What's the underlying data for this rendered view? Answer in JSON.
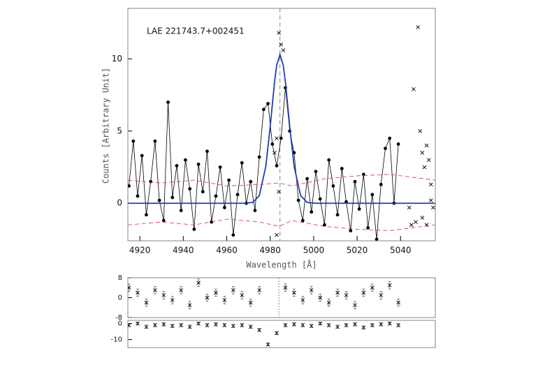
{
  "chart_data": [
    {
      "type": "scatter",
      "annotation": "LAE 221743.7+002451",
      "xlabel": "Wavelength [Å]",
      "ylabel": "Counts [Arbitrary Unit]",
      "xlim": [
        4914.5,
        5056
      ],
      "ylim": [
        -2.6,
        13.5
      ],
      "xticks": [
        4920,
        4940,
        4960,
        4980,
        5000,
        5020,
        5040
      ],
      "yticks": [
        0,
        5,
        10
      ],
      "vline": 4984.5,
      "series": [
        {
          "style": "points-line",
          "color": "#000000",
          "x": [
            4915,
            4917,
            4919,
            4921,
            4923,
            4925,
            4927,
            4929,
            4931,
            4933,
            4935,
            4937,
            4939,
            4941,
            4943,
            4945,
            4947,
            4949,
            4951,
            4953,
            4955,
            4957,
            4959,
            4961,
            4963,
            4965,
            4967,
            4969,
            4971,
            4973,
            4975,
            4977,
            4979,
            4981,
            4983,
            4985,
            4987,
            4989,
            4991,
            4993,
            4995,
            4997,
            4999,
            5001,
            5003,
            5005,
            5007,
            5009,
            5011,
            5013,
            5015,
            5017,
            5019,
            5021,
            5023,
            5025,
            5027,
            5029,
            5031,
            5033,
            5035,
            5037,
            5039
          ],
          "values": [
            1.2,
            4.3,
            0.5,
            3.3,
            -0.8,
            1.5,
            4.3,
            0.2,
            -1.2,
            7.0,
            0.4,
            2.6,
            -0.5,
            3.0,
            1.0,
            -1.8,
            2.7,
            0.8,
            3.6,
            -1.3,
            0.5,
            2.5,
            -0.3,
            1.6,
            -2.2,
            0.6,
            2.8,
            0.0,
            1.5,
            -0.5,
            3.2,
            6.5,
            6.9,
            4.1,
            2.6,
            4.5,
            8.0,
            5.0,
            3.5,
            0.2,
            -1.2,
            1.7,
            -0.6,
            2.2,
            0.3,
            -1.5,
            3.0,
            1.2,
            -0.8,
            2.4,
            0.1,
            -1.9,
            1.5,
            -0.4,
            2.0,
            -1.7,
            0.6,
            -2.5,
            1.3,
            3.8,
            4.5,
            0.0,
            4.1
          ]
        },
        {
          "style": "cross",
          "color": "#000000",
          "x": [
            4984,
            4985,
            4986,
            4983,
            4982,
            4984,
            4983,
            5048,
            5046,
            5049,
            5050,
            5052,
            5053,
            5051,
            5054,
            5054,
            5055,
            5050,
            5044,
            5047,
            5052,
            5045
          ],
          "values": [
            11.8,
            11.0,
            10.6,
            4.5,
            3.5,
            0.8,
            -2.2,
            12.2,
            7.9,
            5.0,
            3.5,
            4.0,
            3.0,
            2.5,
            1.3,
            0.2,
            -0.3,
            -1.0,
            -0.3,
            -1.3,
            -1.5,
            -1.5
          ]
        },
        {
          "style": "line",
          "color": "#1f3fb0",
          "x": [
            4914.5,
            4968,
            4972,
            4975,
            4978,
            4980,
            4982,
            4983,
            4984.5,
            4986,
            4987,
            4989,
            4991,
            4994,
            4997,
            5001,
            5056
          ],
          "values": [
            0,
            0,
            0.06,
            0.53,
            2.57,
            5.3,
            8.4,
            9.57,
            10.3,
            9.57,
            8.4,
            5.3,
            2.57,
            0.53,
            0.06,
            0,
            0
          ]
        },
        {
          "style": "dashed",
          "color": "#cc3344",
          "x": [
            4914.5,
            4930,
            4945,
            4960,
            4975,
            4984,
            4990,
            5005,
            5020,
            5035,
            5056
          ],
          "values": [
            1.6,
            1.4,
            1.6,
            1.2,
            1.3,
            1.4,
            1.2,
            1.7,
            1.9,
            2.0,
            1.6
          ]
        },
        {
          "style": "dashed",
          "color": "#cc3344",
          "x": [
            4914.5,
            4930,
            4945,
            4960,
            4975,
            4984,
            4990,
            5005,
            5020,
            5035,
            5056
          ],
          "values": [
            -1.5,
            -1.3,
            -1.5,
            -1.1,
            -1.3,
            -1.6,
            -1.2,
            -1.6,
            -1.8,
            -1.9,
            -1.5
          ]
        }
      ]
    },
    {
      "type": "errorbar",
      "xlim": [
        4914.5,
        5056
      ],
      "ylim": [
        -8,
        8
      ],
      "yticks": [
        8,
        0,
        -8
      ],
      "vline": 4984,
      "series": [
        {
          "style": "cross",
          "color": "#000000",
          "x": [
            4915,
            4919,
            4923,
            4927,
            4931,
            4935,
            4939,
            4943,
            4947,
            4951,
            4955,
            4959,
            4963,
            4967,
            4971,
            4975,
            4979,
            4983,
            4987,
            4991,
            4995,
            4999,
            5003,
            5007,
            5011,
            5015,
            5019,
            5023,
            5027,
            5031,
            5035,
            5039
          ],
          "values": [
            4,
            2,
            -2,
            3,
            1,
            -1,
            3,
            -3,
            6,
            0,
            2,
            -1,
            3,
            1,
            -2,
            3,
            null,
            null,
            4,
            2,
            -1,
            3,
            0,
            -2,
            2,
            1,
            -3,
            2,
            4,
            1,
            5,
            -2
          ],
          "errors": [
            1.5,
            1.5,
            1.5,
            1.5,
            1.5,
            1.5,
            1.5,
            1.5,
            1.5,
            1.5,
            1.5,
            1.5,
            1.5,
            1.5,
            1.5,
            1.5,
            null,
            null,
            1.5,
            1.5,
            1.5,
            1.5,
            1.5,
            1.5,
            1.5,
            1.5,
            1.5,
            1.5,
            1.5,
            1.5,
            1.5,
            1.5
          ]
        }
      ]
    },
    {
      "type": "errorbar",
      "xlim": [
        4914.5,
        5056
      ],
      "ylim": [
        -15,
        2
      ],
      "yticks": [
        0,
        -10
      ],
      "series": [
        {
          "style": "cross",
          "color": "#000000",
          "x": [
            4915,
            4919,
            4923,
            4927,
            4931,
            4935,
            4939,
            4943,
            4947,
            4951,
            4955,
            4959,
            4963,
            4967,
            4971,
            4975,
            4979,
            4983,
            4987,
            4991,
            4995,
            4999,
            5003,
            5007,
            5011,
            5015,
            5019,
            5023,
            5027,
            5031,
            5035,
            5039
          ],
          "values": [
            -1,
            0,
            -2,
            -1,
            -0.5,
            -1.5,
            -1,
            -2,
            0,
            -1,
            -0.5,
            -1,
            -1.5,
            -1,
            -2,
            -4,
            -13,
            -6,
            -1,
            -0.5,
            -1,
            -1.5,
            0,
            -1,
            -2,
            -1,
            -0.5,
            -2.5,
            -1,
            -0.5,
            0,
            -1
          ],
          "errors": [
            1,
            1,
            1,
            1,
            1,
            1,
            1,
            1,
            1,
            1,
            1,
            1,
            1,
            1,
            1,
            1,
            1,
            1,
            1,
            1,
            1,
            1,
            1,
            1,
            1,
            1,
            1,
            1,
            1,
            1,
            1,
            1
          ]
        }
      ]
    }
  ]
}
